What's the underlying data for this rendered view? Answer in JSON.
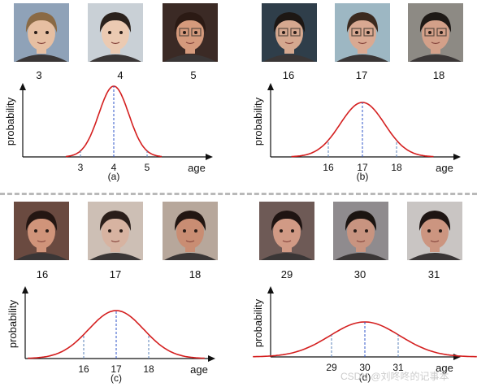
{
  "panels": [
    {
      "id": "a",
      "caption": "(a)",
      "faces": [
        {
          "age_label": "3",
          "hair": "#8a6a45",
          "skin": "#e6bfa2",
          "bg": "#8fa2b8",
          "glasses": false
        },
        {
          "age_label": "4",
          "hair": "#2a211c",
          "skin": "#ebcab2",
          "bg": "#c9d0d6",
          "glasses": false
        },
        {
          "age_label": "5",
          "hair": "#2b1a14",
          "skin": "#d59a7c",
          "bg": "#3b2a25",
          "glasses": true
        }
      ]
    },
    {
      "id": "b",
      "caption": "(b)",
      "faces": [
        {
          "age_label": "16",
          "hair": "#1d1714",
          "skin": "#d5a88f",
          "bg": "#2f3e4a",
          "glasses": true
        },
        {
          "age_label": "17",
          "hair": "#3b2a1f",
          "skin": "#d9a992",
          "bg": "#9db7c3",
          "glasses": true
        },
        {
          "age_label": "18",
          "hair": "#1e1916",
          "skin": "#d3a089",
          "bg": "#8d8a84",
          "glasses": true
        }
      ]
    },
    {
      "id": "c",
      "caption": "(c)",
      "faces": [
        {
          "age_label": "16",
          "hair": "#241612",
          "skin": "#d0947a",
          "bg": "#6a4a40",
          "glasses": false
        },
        {
          "age_label": "17",
          "hair": "#2a1e1a",
          "skin": "#d7b3a1",
          "bg": "#cdbfb5",
          "glasses": false
        },
        {
          "age_label": "18",
          "hair": "#221612",
          "skin": "#c98d73",
          "bg": "#b7a79b",
          "glasses": false
        }
      ]
    },
    {
      "id": "d",
      "caption": "(d)",
      "faces": [
        {
          "age_label": "29",
          "hair": "#1f1412",
          "skin": "#d19a85",
          "bg": "#6e5a56",
          "glasses": false
        },
        {
          "age_label": "30",
          "hair": "#1b1411",
          "skin": "#c89480",
          "bg": "#8f8b8e",
          "glasses": false
        },
        {
          "age_label": "31",
          "hair": "#1e1513",
          "skin": "#cc9580",
          "bg": "#c9c5c3",
          "glasses": false
        }
      ]
    }
  ],
  "chart_data": [
    {
      "type": "line",
      "panel": "a",
      "ylabel": "probability",
      "xlabel": "age",
      "ticks": [
        "3",
        "4",
        "5"
      ],
      "curve": "gaussian",
      "mean_age": 4,
      "sigma_age": 0.45,
      "y_range": [
        0,
        1
      ]
    },
    {
      "type": "line",
      "panel": "b",
      "ylabel": "probability",
      "xlabel": "age",
      "ticks": [
        "16",
        "17",
        "18"
      ],
      "curve": "gaussian",
      "mean_age": 17,
      "sigma_age": 0.65,
      "y_range": [
        0,
        1
      ]
    },
    {
      "type": "line",
      "panel": "c",
      "ylabel": "probability",
      "xlabel": "age",
      "ticks": [
        "16",
        "17",
        "18"
      ],
      "curve": "gaussian",
      "mean_age": 17,
      "sigma_age": 0.85,
      "y_range": [
        0,
        1
      ]
    },
    {
      "type": "line",
      "panel": "d",
      "ylabel": "probability",
      "xlabel": "age",
      "ticks": [
        "29",
        "30",
        "31"
      ],
      "curve": "gaussian",
      "mean_age": 30,
      "sigma_age": 1.05,
      "y_range": [
        0,
        1
      ]
    }
  ],
  "colors": {
    "curve": "#d41f1f",
    "axis": "#111111",
    "mean_dash": "#2f56c9",
    "tick_dash": "#5a80b8",
    "separator": "#b9b9b9",
    "watermark": "#cccccc"
  },
  "watermark": "CSDN @刘咚咚的记事本"
}
